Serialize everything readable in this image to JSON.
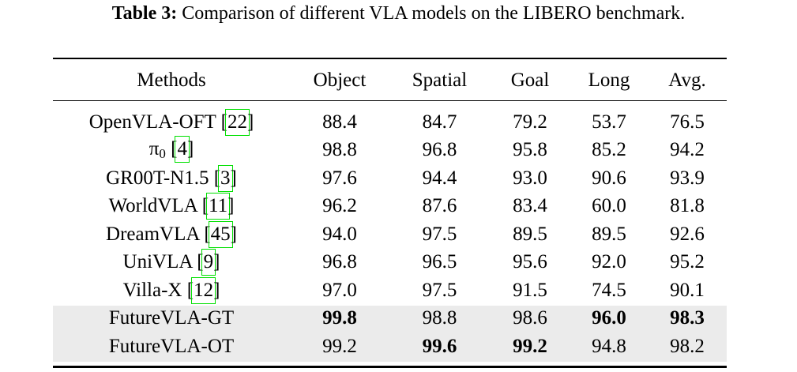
{
  "caption": {
    "label": "Table 3:",
    "text": "Comparison of different VLA models on the LIBERO benchmark."
  },
  "columns": [
    "Methods",
    "Object",
    "Spatial",
    "Goal",
    "Long",
    "Avg."
  ],
  "highlight_color": "#ebebeb",
  "citation_box_color": "#00e000",
  "rows": [
    {
      "method": "OpenVLA-OFT",
      "sub": "",
      "cite": "22",
      "shaded": false,
      "cells": [
        {
          "v": "88.4",
          "b": false
        },
        {
          "v": "84.7",
          "b": false
        },
        {
          "v": "79.2",
          "b": false
        },
        {
          "v": "53.7",
          "b": false
        },
        {
          "v": "76.5",
          "b": false
        }
      ]
    },
    {
      "method": "π",
      "sub": "0",
      "cite": "4",
      "shaded": false,
      "cells": [
        {
          "v": "98.8",
          "b": false
        },
        {
          "v": "96.8",
          "b": false
        },
        {
          "v": "95.8",
          "b": false
        },
        {
          "v": "85.2",
          "b": false
        },
        {
          "v": "94.2",
          "b": false
        }
      ]
    },
    {
      "method": "GR00T-N1.5",
      "sub": "",
      "cite": "3",
      "shaded": false,
      "cells": [
        {
          "v": "97.6",
          "b": false
        },
        {
          "v": "94.4",
          "b": false
        },
        {
          "v": "93.0",
          "b": false
        },
        {
          "v": "90.6",
          "b": false
        },
        {
          "v": "93.9",
          "b": false
        }
      ]
    },
    {
      "method": "WorldVLA",
      "sub": "",
      "cite": "11",
      "shaded": false,
      "cells": [
        {
          "v": "96.2",
          "b": false
        },
        {
          "v": "87.6",
          "b": false
        },
        {
          "v": "83.4",
          "b": false
        },
        {
          "v": "60.0",
          "b": false
        },
        {
          "v": "81.8",
          "b": false
        }
      ]
    },
    {
      "method": "DreamVLA",
      "sub": "",
      "cite": "45",
      "shaded": false,
      "cells": [
        {
          "v": "94.0",
          "b": false
        },
        {
          "v": "97.5",
          "b": false
        },
        {
          "v": "89.5",
          "b": false
        },
        {
          "v": "89.5",
          "b": false
        },
        {
          "v": "92.6",
          "b": false
        }
      ]
    },
    {
      "method": "UniVLA",
      "sub": "",
      "cite": "9",
      "shaded": false,
      "cells": [
        {
          "v": "96.8",
          "b": false
        },
        {
          "v": "96.5",
          "b": false
        },
        {
          "v": "95.6",
          "b": false
        },
        {
          "v": "92.0",
          "b": false
        },
        {
          "v": "95.2",
          "b": false
        }
      ]
    },
    {
      "method": "Villa-X",
      "sub": "",
      "cite": "12",
      "shaded": false,
      "cells": [
        {
          "v": "97.0",
          "b": false
        },
        {
          "v": "97.5",
          "b": false
        },
        {
          "v": "91.5",
          "b": false
        },
        {
          "v": "74.5",
          "b": false
        },
        {
          "v": "90.1",
          "b": false
        }
      ]
    },
    {
      "method": "FutureVLA-GT",
      "sub": "",
      "cite": "",
      "shaded": true,
      "cells": [
        {
          "v": "99.8",
          "b": true
        },
        {
          "v": "98.8",
          "b": false
        },
        {
          "v": "98.6",
          "b": false
        },
        {
          "v": "96.0",
          "b": true
        },
        {
          "v": "98.3",
          "b": true
        }
      ]
    },
    {
      "method": "FutureVLA-OT",
      "sub": "",
      "cite": "",
      "shaded": true,
      "cells": [
        {
          "v": "99.2",
          "b": false
        },
        {
          "v": "99.6",
          "b": true
        },
        {
          "v": "99.2",
          "b": true
        },
        {
          "v": "94.8",
          "b": false
        },
        {
          "v": "98.2",
          "b": false
        }
      ]
    }
  ]
}
